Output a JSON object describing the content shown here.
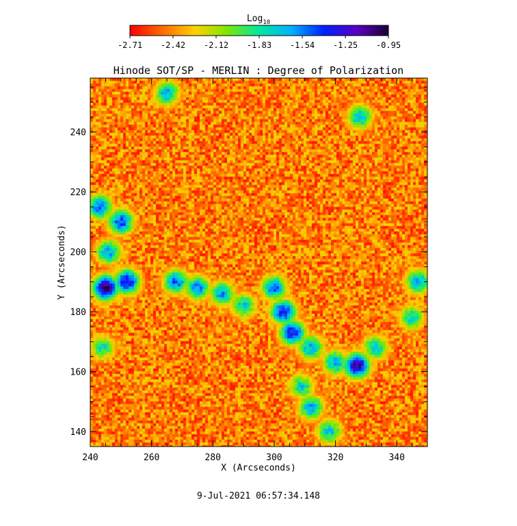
{
  "chart_data": {
    "type": "heatmap",
    "title": "Hinode SOT/SP - MERLIN : Degree of Polarization",
    "xlabel": "X (Arcseconds)",
    "ylabel": "Y (Arcseconds)",
    "xlim": [
      240,
      350
    ],
    "ylim": [
      135,
      258
    ],
    "x_ticks": [
      240,
      260,
      280,
      300,
      320,
      340
    ],
    "y_ticks": [
      140,
      160,
      180,
      200,
      220,
      240
    ],
    "colorbar": {
      "label_base": "Log",
      "label_sub": "10",
      "range": [
        -2.71,
        -0.95
      ],
      "ticks": [
        "-2.71",
        "-2.42",
        "-2.12",
        "-1.83",
        "-1.54",
        "-1.25",
        "-0.95"
      ],
      "palette": [
        "#ff0000",
        "#ff6a00",
        "#ffd000",
        "#7de800",
        "#00e8a0",
        "#00b0ff",
        "#0020ff",
        "#5a00c8",
        "#1a0030"
      ]
    },
    "features": [
      {
        "x": 245,
        "y": 188,
        "value": -1.05
      },
      {
        "x": 252,
        "y": 190,
        "value": -1.25
      },
      {
        "x": 250,
        "y": 210,
        "value": -1.4
      },
      {
        "x": 243,
        "y": 215,
        "value": -1.5
      },
      {
        "x": 246,
        "y": 200,
        "value": -1.6
      },
      {
        "x": 268,
        "y": 190,
        "value": -1.5
      },
      {
        "x": 275,
        "y": 188,
        "value": -1.55
      },
      {
        "x": 283,
        "y": 186,
        "value": -1.6
      },
      {
        "x": 290,
        "y": 182,
        "value": -1.7
      },
      {
        "x": 303,
        "y": 180,
        "value": -1.3
      },
      {
        "x": 306,
        "y": 173,
        "value": -1.3
      },
      {
        "x": 300,
        "y": 188,
        "value": -1.5
      },
      {
        "x": 312,
        "y": 168,
        "value": -1.6
      },
      {
        "x": 327,
        "y": 162,
        "value": -1.1
      },
      {
        "x": 320,
        "y": 163,
        "value": -1.6
      },
      {
        "x": 333,
        "y": 168,
        "value": -1.7
      },
      {
        "x": 312,
        "y": 148,
        "value": -1.6
      },
      {
        "x": 318,
        "y": 140,
        "value": -1.7
      },
      {
        "x": 309,
        "y": 155,
        "value": -1.75
      },
      {
        "x": 265,
        "y": 253,
        "value": -1.65
      },
      {
        "x": 328,
        "y": 245,
        "value": -1.65
      },
      {
        "x": 347,
        "y": 190,
        "value": -1.6
      },
      {
        "x": 345,
        "y": 178,
        "value": -1.75
      },
      {
        "x": 244,
        "y": 168,
        "value": -1.8
      }
    ]
  },
  "footer": {
    "timestamp": "9-Jul-2021 06:57:34.148"
  }
}
